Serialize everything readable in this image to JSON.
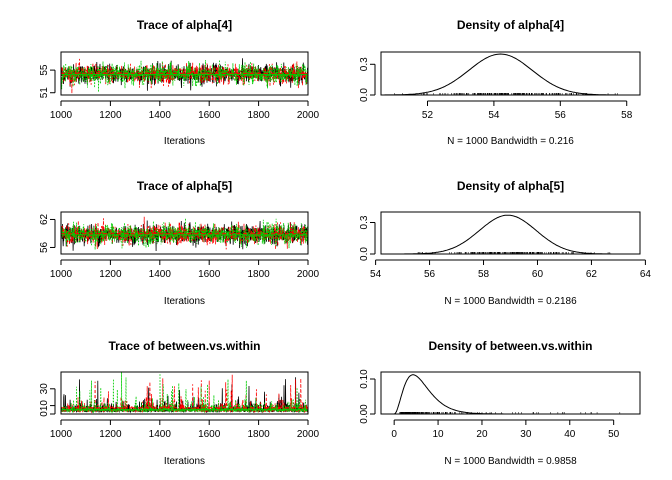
{
  "chart_data": [
    {
      "type": "line",
      "title": "Trace of alpha[4]",
      "xlabel": "Iterations",
      "ylabel": "",
      "xlim": [
        1000,
        2000
      ],
      "ylim": [
        50.6,
        58.2
      ],
      "xticks": [
        "1000",
        "1200",
        "1400",
        "1600",
        "1800",
        "2000"
      ],
      "yticks": [
        "51",
        "55"
      ],
      "series": [
        {
          "color": "#000000",
          "center": 54.3,
          "sd": 0.85
        },
        {
          "color": "#ff0000",
          "center": 54.3,
          "sd": 0.85
        },
        {
          "color": "#00cd00",
          "center": 54.3,
          "sd": 0.85
        }
      ],
      "mean_line": 54.3
    },
    {
      "type": "line",
      "title": "Density of alpha[4]",
      "xlabel": "N = 1000   Bandwidth = 0.216",
      "ylabel": "",
      "xlim": [
        50.6,
        58.4
      ],
      "ylim": [
        0,
        0.42
      ],
      "xticks": [
        "52",
        "54",
        "56",
        "58"
      ],
      "yticks": [
        "0.0",
        "0.3"
      ],
      "peak_x": 54.2,
      "peak_y": 0.4,
      "sd": 0.95,
      "rug_range": [
        50.8,
        58.1
      ]
    },
    {
      "type": "line",
      "title": "Trace of alpha[5]",
      "xlabel": "Iterations",
      "ylabel": "",
      "xlim": [
        1000,
        2000
      ],
      "ylim": [
        54.6,
        63.6
      ],
      "xticks": [
        "1000",
        "1200",
        "1400",
        "1600",
        "1800",
        "2000"
      ],
      "yticks": [
        "56",
        "62"
      ],
      "series": [
        {
          "color": "#000000",
          "center": 58.8,
          "sd": 1.05
        },
        {
          "color": "#ff0000",
          "center": 58.8,
          "sd": 1.05
        },
        {
          "color": "#00cd00",
          "center": 58.8,
          "sd": 1.05
        }
      ],
      "mean_line": 58.8
    },
    {
      "type": "line",
      "title": "Density of alpha[5]",
      "xlabel": "N = 1000   Bandwidth = 0.2186",
      "ylabel": "",
      "xlim": [
        54.2,
        63.8
      ],
      "ylim": [
        0,
        0.4
      ],
      "xticks": [
        "54",
        "56",
        "58",
        "60",
        "62",
        "64"
      ],
      "yticks": [
        "0.0",
        "0.3"
      ],
      "peak_x": 58.9,
      "peak_y": 0.37,
      "sd": 1.05,
      "rug_range": [
        54.6,
        63.5
      ]
    },
    {
      "type": "line",
      "title": "Trace of between.vs.within",
      "xlabel": "Iterations",
      "ylabel": "",
      "xlim": [
        1000,
        2000
      ],
      "ylim": [
        0,
        50
      ],
      "xticks": [
        "1000",
        "1200",
        "1400",
        "1600",
        "1800",
        "2000"
      ],
      "yticks": [
        "0",
        "10",
        "30"
      ],
      "series": [
        {
          "color": "#000000",
          "center": 6,
          "sd": 4
        },
        {
          "color": "#ff0000",
          "center": 6,
          "sd": 4
        },
        {
          "color": "#00cd00",
          "center": 6,
          "sd": 4
        }
      ],
      "mean_line": 6
    },
    {
      "type": "line",
      "title": "Density of between.vs.within",
      "xlabel": "N = 1000   Bandwidth = 0.9858",
      "ylabel": "",
      "xlim": [
        -3,
        56
      ],
      "ylim": [
        0,
        0.12
      ],
      "xticks": [
        "0",
        "10",
        "20",
        "30",
        "40",
        "50"
      ],
      "yticks": [
        "0.00",
        "0.10"
      ],
      "peak_x": 4.3,
      "peak_y": 0.112,
      "sd": 3.5,
      "rug_range": [
        0.5,
        52
      ]
    }
  ]
}
